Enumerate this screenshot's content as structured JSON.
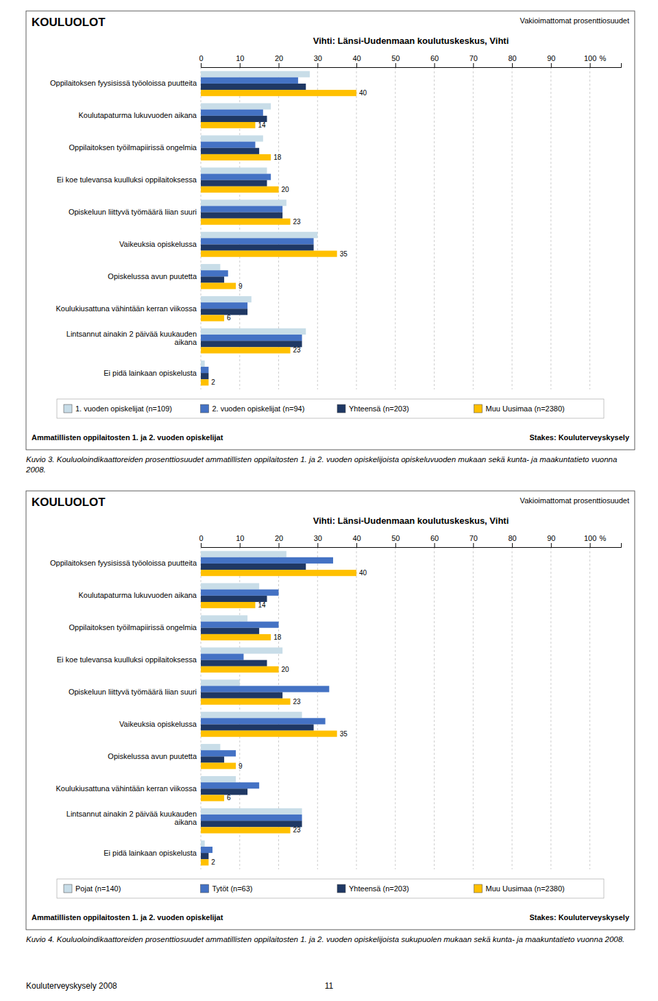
{
  "chart_data": [
    {
      "type": "bar",
      "orientation": "horizontal",
      "title": "Vihti: Länsi-Uudenmaan koulutuskeskus, Vihti",
      "annotations": [
        "KOULUOLOT",
        "Vakioimattomat prosenttiosuudet",
        "Ammatillisten oppilaitosten 1. ja 2. vuoden opiskelijat",
        "Stakes: Kouluterveyskysely"
      ],
      "caption": "Kuvio 3. Kouluoloindikaattoreiden prosenttiosuudet ammatillisten oppilaitosten 1. ja 2. vuoden opiskelijoista opiskeluvuoden mukaan sekä kunta- ja maakuntatieto vuonna 2008.",
      "xlabel": "%",
      "categories": [
        "Oppilaitoksen fyysisissä työoloissa puutteita",
        "Koulutapaturma lukuvuoden aikana",
        "Oppilaitoksen työilmapiirissä ongelmia",
        "Ei koe tulevansa kuulluksi oppilaitoksessa",
        "Opiskeluun liittyvä työmäärä liian suuri",
        "Vaikeuksia opiskelussa",
        "Opiskelussa avun puutetta",
        "Koulukiusattuna vähintään kerran viikossa",
        "Lintsannut ainakin 2 päivää kuukauden\naikana",
        "Ei pidä lainkaan opiskelusta"
      ],
      "series": [
        {
          "name": "1. vuoden opiskelijat (n=109)",
          "color": "#c8dde8",
          "values": [
            28,
            18,
            16,
            17,
            22,
            30,
            5,
            13,
            27,
            1
          ]
        },
        {
          "name": "2. vuoden opiskelijat (n=94)",
          "color": "#4472c4",
          "values": [
            25,
            16,
            14,
            18,
            21,
            29,
            7,
            12,
            26,
            2
          ]
        },
        {
          "name": "Yhteensä (n=203)",
          "color": "#1f3864",
          "values": [
            27,
            17,
            15,
            17,
            21,
            29,
            6,
            12,
            26,
            2
          ]
        },
        {
          "name": "Muu Uusimaa (n=2380)",
          "color": "#ffc000",
          "values": [
            40,
            14,
            18,
            20,
            23,
            35,
            9,
            6,
            23,
            2
          ],
          "data_labels": true
        }
      ],
      "xlim": [
        0,
        108
      ],
      "xticks": [
        0,
        10,
        20,
        30,
        40,
        50,
        60,
        70,
        80,
        90,
        100
      ],
      "grid": true,
      "legend": "bottom"
    },
    {
      "type": "bar",
      "orientation": "horizontal",
      "title": "Vihti: Länsi-Uudenmaan koulutuskeskus, Vihti",
      "annotations": [
        "KOULUOLOT",
        "Vakioimattomat prosenttiosuudet",
        "Ammatillisten oppilaitosten 1. ja 2. vuoden opiskelijat",
        "Stakes: Kouluterveyskysely",
        "Kouluterveyskysely 2008",
        "11"
      ],
      "caption": "Kuvio 4. Kouluoloindikaattoreiden prosenttiosuudet ammatillisten oppilaitosten 1. ja 2. vuoden opiskelijoista sukupuolen mukaan sekä kunta- ja maakuntatieto vuonna 2008.",
      "xlabel": "%",
      "categories": [
        "Oppilaitoksen fyysisissä työoloissa puutteita",
        "Koulutapaturma lukuvuoden aikana",
        "Oppilaitoksen työilmapiirissä ongelmia",
        "Ei koe tulevansa kuulluksi oppilaitoksessa",
        "Opiskeluun liittyvä työmäärä liian suuri",
        "Vaikeuksia opiskelussa",
        "Opiskelussa avun puutetta",
        "Koulukiusattuna vähintään kerran viikossa",
        "Lintsannut ainakin 2 päivää kuukauden\naikana",
        "Ei pidä lainkaan opiskelusta"
      ],
      "series": [
        {
          "name": "Pojat (n=140)",
          "color": "#c8dde8",
          "values": [
            22,
            15,
            12,
            21,
            10,
            26,
            5,
            9,
            26,
            1
          ]
        },
        {
          "name": "Tytöt (n=63)",
          "color": "#4472c4",
          "values": [
            34,
            20,
            20,
            11,
            33,
            32,
            9,
            15,
            26,
            3
          ]
        },
        {
          "name": "Yhteensä (n=203)",
          "color": "#1f3864",
          "values": [
            27,
            17,
            15,
            17,
            21,
            29,
            6,
            12,
            26,
            2
          ]
        },
        {
          "name": "Muu Uusimaa (n=2380)",
          "color": "#ffc000",
          "values": [
            40,
            14,
            18,
            20,
            23,
            35,
            9,
            6,
            23,
            2
          ],
          "data_labels": true
        }
      ],
      "xlim": [
        0,
        108
      ],
      "xticks": [
        0,
        10,
        20,
        30,
        40,
        50,
        60,
        70,
        80,
        90,
        100
      ],
      "grid": true,
      "legend": "bottom"
    }
  ]
}
